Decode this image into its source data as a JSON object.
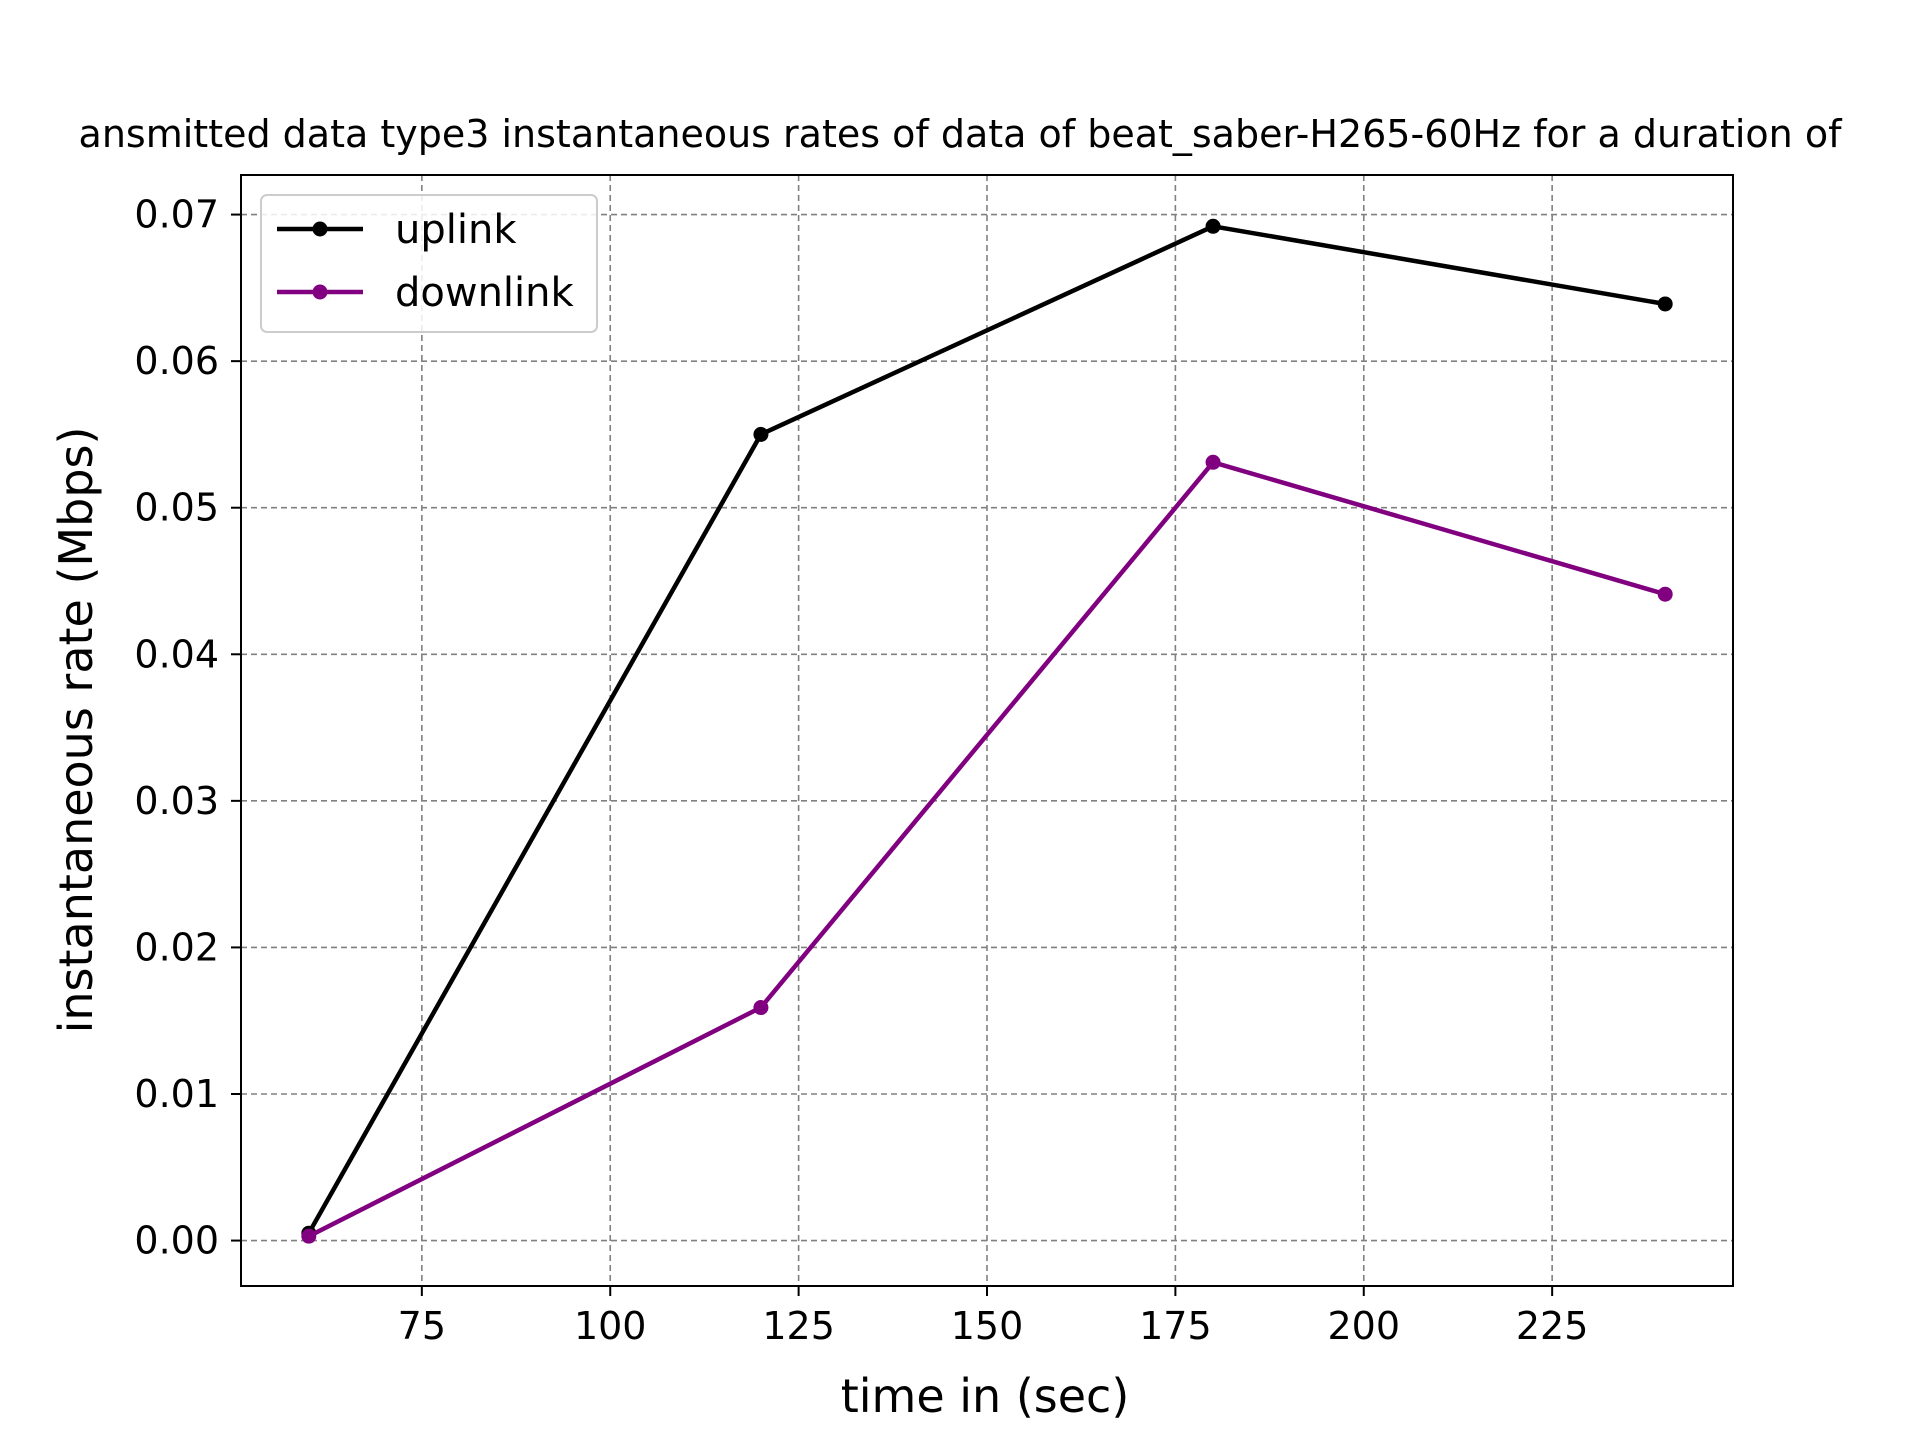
{
  "chart_data": {
    "type": "line",
    "title": "ansmitted data type3 instantaneous rates of data of beat_saber-H265-60Hz for a duration of",
    "xlabel": "time in (sec)",
    "ylabel": "instantaneous rate (Mbps)",
    "x": [
      60,
      120,
      180,
      240
    ],
    "xlim": [
      51,
      249
    ],
    "ylim": [
      -0.0031,
      0.0727
    ],
    "xticks": [
      75,
      100,
      125,
      150,
      175,
      200,
      225
    ],
    "yticks": [
      0.0,
      0.01,
      0.02,
      0.03,
      0.04,
      0.05,
      0.06,
      0.07
    ],
    "xtick_labels": [
      "75",
      "100",
      "125",
      "150",
      "175",
      "200",
      "225"
    ],
    "ytick_labels": [
      "0.00",
      "0.01",
      "0.02",
      "0.03",
      "0.04",
      "0.05",
      "0.06",
      "0.07"
    ],
    "grid": true,
    "legend_position": "top-left",
    "series": [
      {
        "name": "uplink",
        "color": "#000000",
        "values": [
          0.0005,
          0.055,
          0.0692,
          0.0639
        ]
      },
      {
        "name": "downlink",
        "color": "#800080",
        "values": [
          0.0003,
          0.0159,
          0.0531,
          0.0441
        ]
      }
    ]
  }
}
